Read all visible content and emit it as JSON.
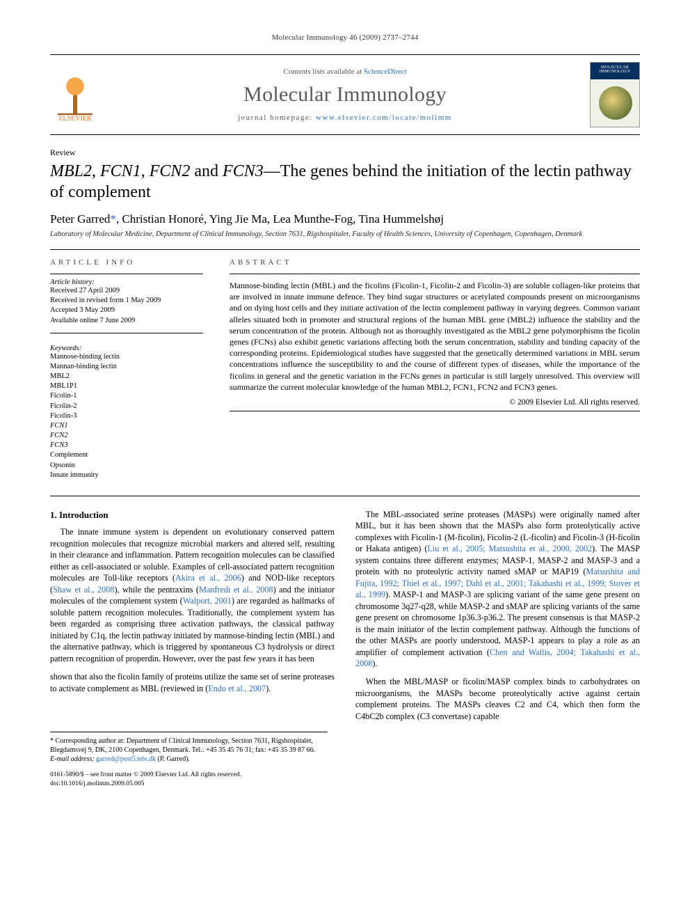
{
  "running_head": "Molecular Immunology 46 (2009) 2737–2744",
  "masthead": {
    "publisher_label": "ELSEVIER",
    "contents_line_prefix": "Contents lists available at ",
    "contents_link": "ScienceDirect",
    "journal_name": "Molecular Immunology",
    "homepage_prefix": "journal homepage: ",
    "homepage_url": "www.elsevier.com/locate/molimm",
    "cover_title": "MOLECULAR IMMUNOLOGY"
  },
  "article_type": "Review",
  "title_parts": {
    "p1": "MBL2",
    "c1": ", ",
    "p2": "FCN1",
    "c2": ", ",
    "p3": "FCN2",
    "c3": " and ",
    "p4": "FCN3",
    "tail": "—The genes behind the initiation of the lectin pathway of complement"
  },
  "authors_line": "Peter Garred",
  "authors_rest": ", Christian Honoré, Ying Jie Ma, Lea Munthe-Fog, Tina Hummelshøj",
  "corr_marker": "*",
  "affiliation": "Laboratory of Molecular Medicine, Department of Clinical Immunology, Section 7631, Rigshospitalet, Faculty of Health Sciences, University of Copenhagen, Copenhagen, Denmark",
  "info_heading": "ARTICLE INFO",
  "abstract_heading": "ABSTRACT",
  "history": {
    "label": "Article history:",
    "items": [
      "Received 27 April 2009",
      "Received in revised form 1 May 2009",
      "Accepted 3 May 2009",
      "Available online 7 June 2009"
    ]
  },
  "keywords": {
    "label": "Keywords:",
    "items": [
      {
        "text": "Mannose-binding lectin",
        "ital": false
      },
      {
        "text": "Mannan-binding lectin",
        "ital": false
      },
      {
        "text": "MBL2",
        "ital": false
      },
      {
        "text": "MBL1P1",
        "ital": false
      },
      {
        "text": "Ficolin-1",
        "ital": false
      },
      {
        "text": "Ficolin-2",
        "ital": false
      },
      {
        "text": "Ficolin-3",
        "ital": false
      },
      {
        "text": "FCN1",
        "ital": true
      },
      {
        "text": "FCN2",
        "ital": true
      },
      {
        "text": "FCN3",
        "ital": true
      },
      {
        "text": "Complement",
        "ital": false
      },
      {
        "text": "Opsonin",
        "ital": false
      },
      {
        "text": "Innate immunity",
        "ital": false
      }
    ]
  },
  "abstract": "Mannose-binding lectin (MBL) and the ficolins (Ficolin-1, Ficolin-2 and Ficolin-3) are soluble collagen-like proteins that are involved in innate immune defence. They bind sugar structures or acetylated compounds present on microorganisms and on dying host cells and they initiate activation of the lectin complement pathway in varying degrees. Common variant alleles situated both in promoter and structural regions of the human MBL gene (MBL2) influence the stability and the serum concentration of the protein. Although not as thoroughly investigated as the MBL2 gene polymorphisms the ficolin genes (FCNs) also exhibit genetic variations affecting both the serum concentration, stability and binding capacity of the corresponding proteins. Epidemiological studies have suggested that the genetically determined variations in MBL serum concentrations influence the susceptibility to and the course of different types of diseases, while the importance of the ficolins in general and the genetic variation in the FCNs genes in particular is still largely unresolved. This overview will summarize the current molecular knowledge of the human MBL2, FCN1, FCN2 and FCN3 genes.",
  "copyright": "© 2009 Elsevier Ltd. All rights reserved.",
  "section1_heading": "1.  Introduction",
  "para1a": "The innate immune system is dependent on evolutionary conserved pattern recognition molecules that recognize microbial markers and altered self, resulting in their clearance and inflammation. Pattern recognition molecules can be classified either as cell-associated or soluble. Examples of cell-associated pattern recognition molecules are Toll-like receptors (",
  "cite1": "Akira et al., 2006",
  "para1b": ") and NOD-like receptors (",
  "cite2": "Shaw et al., 2008",
  "para1c": "), while the pentraxins (",
  "cite3": "Manfredi et al., 2008",
  "para1d": ") and the initiator molecules of the complement system (",
  "cite4": "Walport, 2001",
  "para1e": ") are regarded as hallmarks of soluble pattern recognition molecules. Traditionally, the complement system has been regarded as comprising three activation pathways, the classical pathway initiated by C1q, the lectin pathway initiated by mannose-binding lectin (MBL) and the alternative pathway, which is triggered by spontaneous C3 hydrolysis or direct pattern recognition of properdin. However, over the past few years it has been",
  "para2a": "shown that also the ficolin family of proteins utilize the same set of serine proteases to activate complement as MBL (reviewed in (",
  "cite5": "Endo et al., 2007",
  "para2b": ").",
  "para3a": "The MBL-associated serine proteases (MASPs) were originally named after MBL, but it has been shown that the MASPs also form proteolytically active complexes with Ficolin-1 (M-ficolin), Ficolin-2 (L-ficolin) and Ficolin-3 (H-ficolin or Hakata antigen) (",
  "cite6": "Liu et al., 2005; Matsushita et al., 2000, 2002",
  "para3b": "). The MASP system contains three different enzymes; MASP-1, MASP-2 and MASP-3 and a protein with no proteolytic activity named sMAP or MAP19 (",
  "cite7": "Matsushita and Fujita, 1992; Thiel et al., 1997; Dahl et al., 2001; Takahashi et al., 1999; Stover et al., 1999",
  "para3c": "). MASP-1 and MASP-3 are splicing variant of the same gene present on chromosome 3q27-q28, while MASP-2 and sMAP are splicing variants of the same gene present on chromosome 1p36.3-p36.2. The present consensus is that MASP-2 is the main initiator of the lectin complement pathway. Although the functions of the other MASPs are poorly understood, MASP-1 appears to play a role as an amplifier of complement activation (",
  "cite8": "Chen and Wallis, 2004; Takahashi et al., 2008",
  "para3d": ").",
  "para4": "When the MBL/MASP or ficolin/MASP complex binds to carbohydrates on microorganisms, the MASPs become proteolytically active against certain complement proteins. The MASPs cleaves C2 and C4, which then form the C4bC2b complex (C3 convertase) capable",
  "footnote_corr": "* Corresponding author at: Department of Clinical Immunology, Section 7631, Rigshospitalet, Blegdamsvej 9, DK, 2100 Copenhagen, Denmark. Tel.: +45 35 45 76 31; fax: +45 35 39 87 66.",
  "footnote_email_label": "E-mail address: ",
  "footnote_email": "garred@post5.tele.dk",
  "footnote_email_tail": " (P. Garred).",
  "footer_line1": "0161-5890/$ – see front matter © 2009 Elsevier Ltd. All rights reserved.",
  "footer_line2": "doi:10.1016/j.molimm.2009.05.005",
  "colors": {
    "link": "#2a6ebb",
    "elsevier_orange": "#e9711c",
    "journal_name": "#5a5a5a"
  }
}
